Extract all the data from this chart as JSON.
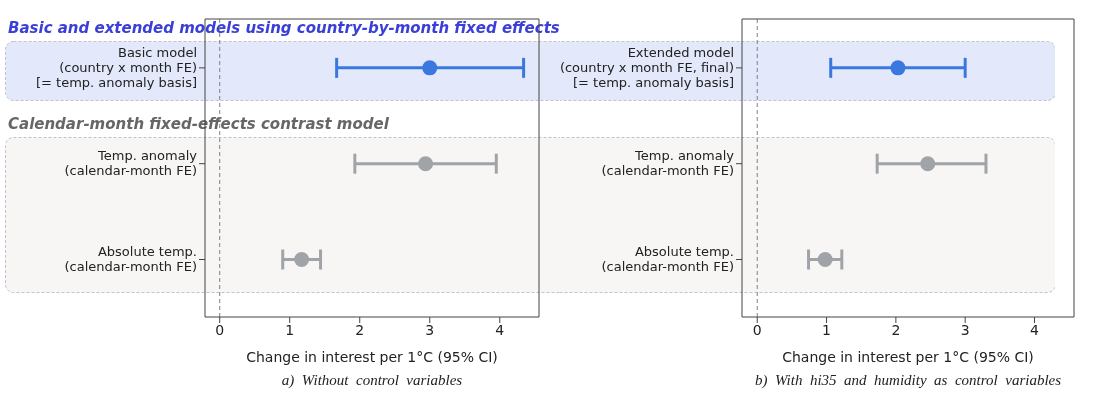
{
  "chart_data": [
    {
      "type": "scatter",
      "orientation": "horizontal",
      "categories": [
        "Basic model\n(country x month FE)\n[= temp. anomaly basis]",
        "Temp. anomaly\n(calendar-month FE)",
        "Absolute temp.\n(calendar-month FE)"
      ],
      "values": [
        3.0,
        2.94,
        1.17
      ],
      "errors": [
        [
          1.67,
          4.34
        ],
        [
          1.93,
          3.95
        ],
        [
          0.9,
          1.44
        ]
      ],
      "colors": [
        "#3a78e0",
        "#a0a4a8",
        "#a0a4a8"
      ],
      "xlim": [
        -0.21,
        4.56
      ],
      "xticks": [
        0,
        1,
        2,
        3,
        4
      ],
      "xlabel": "Change in interest per 1°C (95% CI)",
      "marker": "circle",
      "grid": false,
      "ref_lines": [
        {
          "axis": "x",
          "value": 0,
          "color": "#808080",
          "line_style": "dashed"
        }
      ],
      "bands": [
        {
          "axis": "y",
          "from": "Basic model\n(country x month FE)\n[= temp. anomaly basis]",
          "to": "Basic model\n(country x month FE)\n[= temp. anomaly basis]",
          "label": "Basic and extended models using country-by-month fixed effects",
          "color": "#e3e9fb"
        },
        {
          "axis": "y",
          "from": "Temp. anomaly\n(calendar-month FE)",
          "to": "Absolute temp.\n(calendar-month FE)",
          "label": "Calendar-month fixed-effects contrast model",
          "color": "#f7f6f4"
        }
      ],
      "annotations": [
        "a)  Without  control  variables"
      ]
    },
    {
      "type": "scatter",
      "orientation": "horizontal",
      "categories": [
        "Extended model\n(country x month FE, final)\n[= temp. anomaly basis]",
        "Temp. anomaly\n(calendar-month FE)",
        "Absolute temp.\n(calendar-month FE)"
      ],
      "values": [
        2.03,
        2.46,
        0.98
      ],
      "errors": [
        [
          1.06,
          3.0
        ],
        [
          1.73,
          3.3
        ],
        [
          0.74,
          1.22
        ]
      ],
      "colors": [
        "#3a78e0",
        "#a0a4a8",
        "#a0a4a8"
      ],
      "xlim": [
        -0.22,
        4.57
      ],
      "xticks": [
        0,
        1,
        2,
        3,
        4
      ],
      "xlabel": "Change in interest per 1°C (95% CI)",
      "marker": "circle",
      "grid": false,
      "ref_lines": [
        {
          "axis": "x",
          "value": 0,
          "color": "#808080",
          "line_style": "dashed"
        }
      ],
      "bands": [
        {
          "axis": "y",
          "from": "Extended model\n(country x month FE, final)\n[= temp. anomaly basis]",
          "to": "Extended model\n(country x month FE, final)\n[= temp. anomaly basis]",
          "color": "#e3e9fb"
        },
        {
          "axis": "y",
          "from": "Temp. anomaly\n(calendar-month FE)",
          "to": "Absolute temp.\n(calendar-month FE)",
          "color": "#f7f6f4"
        }
      ],
      "annotations": [
        "b)  With  hi35  and  humidity  as  control  variables"
      ]
    }
  ]
}
